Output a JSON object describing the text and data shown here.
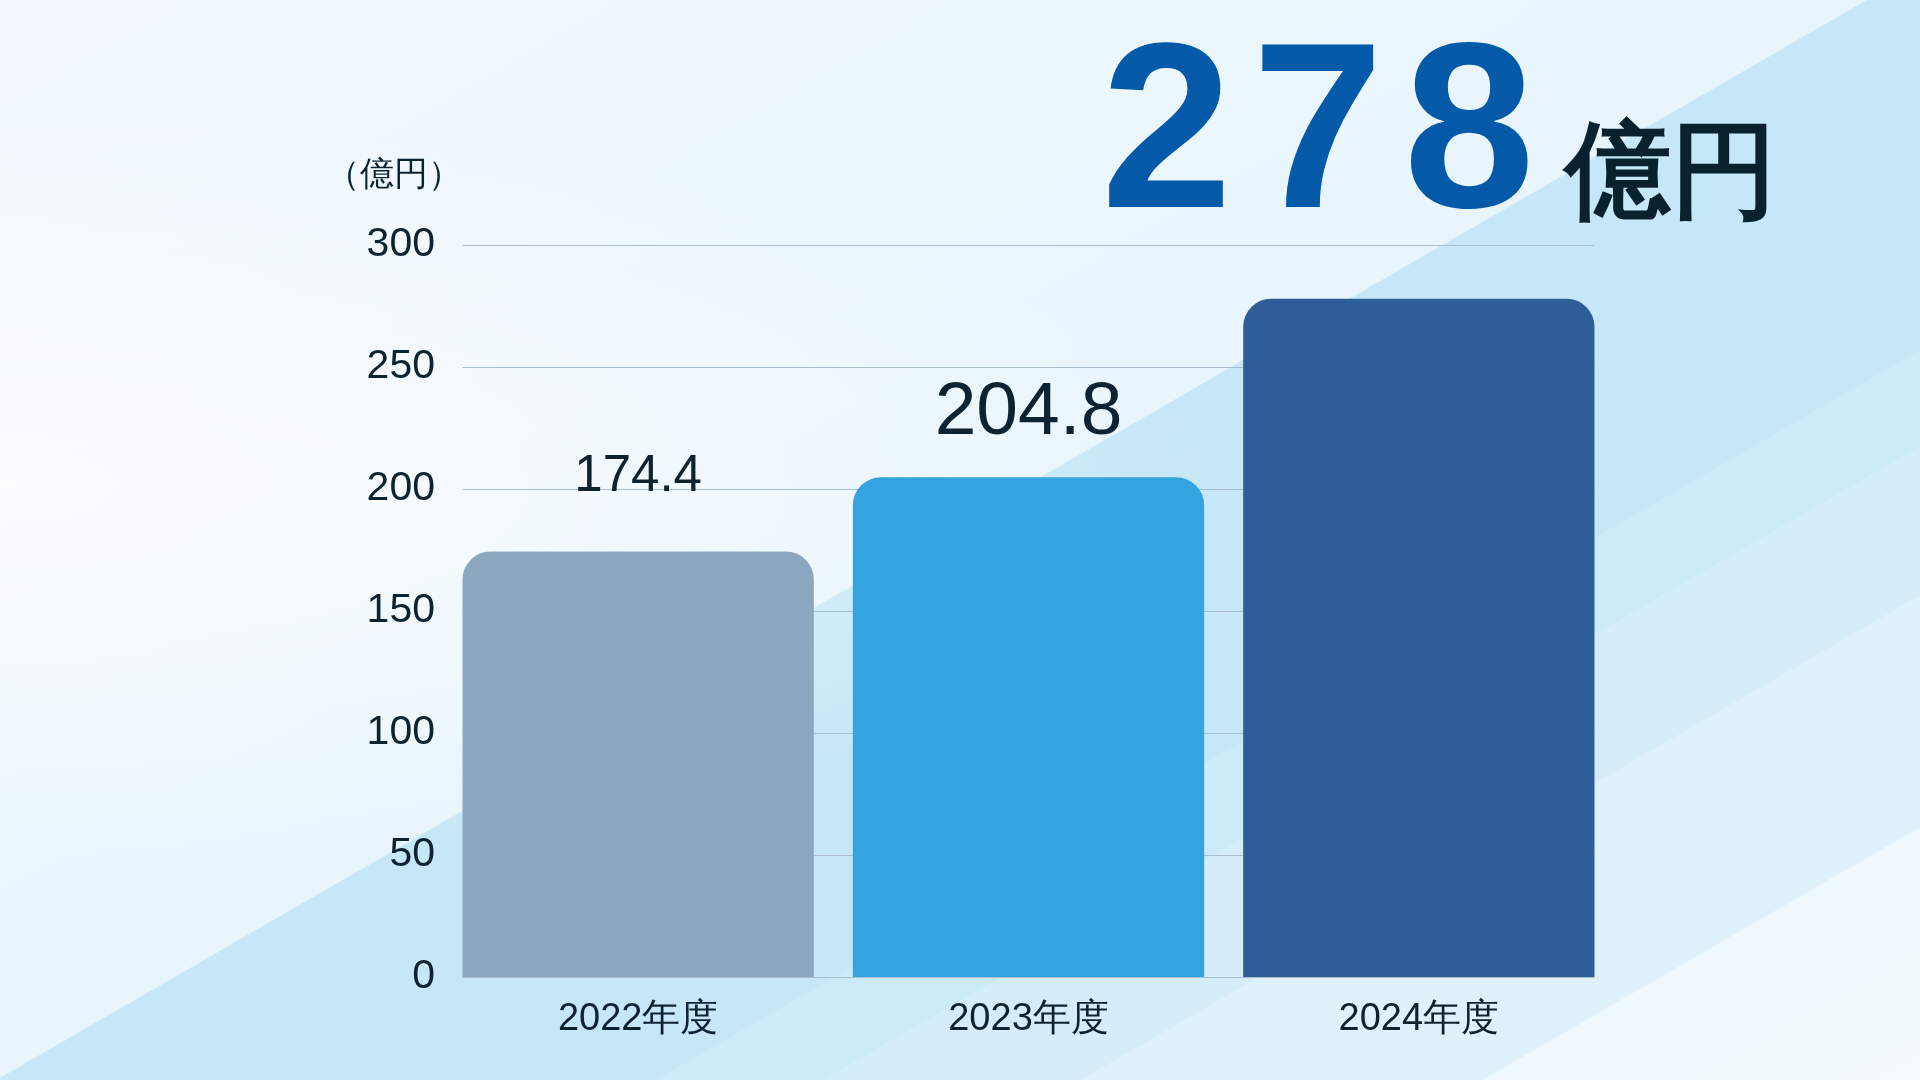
{
  "chart_data": {
    "type": "bar",
    "ylabel": "（億円）",
    "categories": [
      "2022年度",
      "2023年度",
      "2024年度"
    ],
    "values": [
      174.4,
      204.8,
      278
    ],
    "colors": [
      "#8ea7c1",
      "#33a4e0",
      "#2d5e98"
    ],
    "value_labels": [
      "174.4",
      "204.8",
      "278億円"
    ],
    "ylim": [
      0,
      300
    ],
    "yticks": [
      0,
      50,
      100,
      150,
      200,
      250,
      300
    ],
    "grid": "y"
  }
}
